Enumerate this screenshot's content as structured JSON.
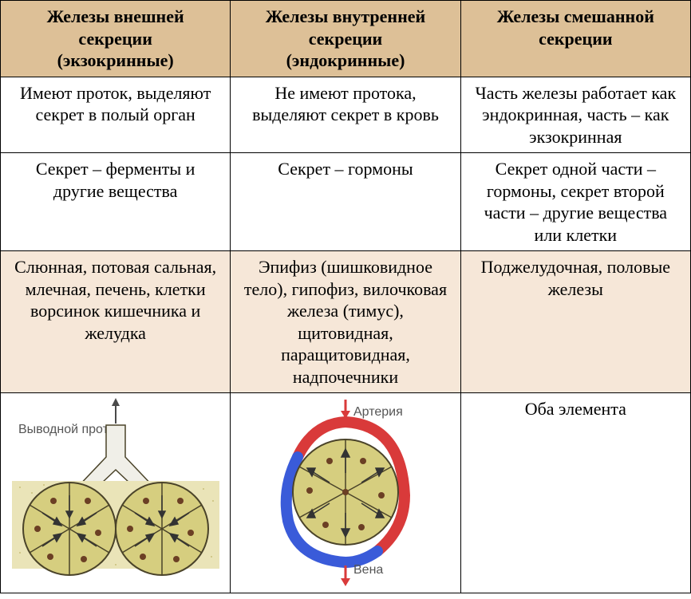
{
  "table": {
    "headers": [
      "Железы внешней секреции\n(экзокринные)",
      "Железы внутренней секреции\n(эндокринные)",
      "Железы смешанной секреции"
    ],
    "rows": [
      {
        "bg": "white",
        "cells": [
          "Имеют проток, выделяют секрет в полый орган",
          "Не имеют протока, выделяют секрет в кровь",
          "Часть железы работает как эндокринная, часть – как экзокринная"
        ]
      },
      {
        "bg": "white",
        "cells": [
          "Секрет – ферменты и другие вещества",
          "Секрет – гормоны",
          "Секрет одной части – гормоны, секрет второй части – другие вещества или клетки"
        ]
      },
      {
        "bg": "tan",
        "cells": [
          "Слюнная, потовая сальная, млечная, печень, клетки ворсинок кишечника и желудка",
          "Эпифиз (шишковидное тело), гипофиз, вилочковая железа (тимус), щитовидная, паращитовидная, надпочечники",
          "Поджелудочная, половые железы"
        ]
      }
    ],
    "diagram_row": {
      "col3_text": "Оба элемента",
      "exocrine": {
        "duct_label": "Выводной проток",
        "tissue_color": "#dcd28c",
        "lobe_fill": "#d6ce7f",
        "lobe_stroke": "#4a4329",
        "granule_color": "#6b3f24",
        "arrow_color": "#4a4a4a"
      },
      "endocrine": {
        "artery_label": "Артерия",
        "vein_label": "Вена",
        "artery_color": "#d93a3a",
        "vein_color": "#3a5bd9",
        "lobe_fill": "#d6ce7f",
        "lobe_stroke": "#4a4329",
        "granule_color": "#6b3f24",
        "arrow_color": "#333333"
      }
    }
  }
}
